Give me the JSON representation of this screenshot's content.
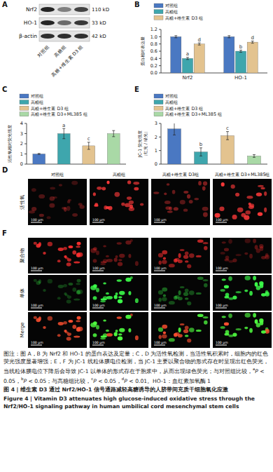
{
  "panel_labels": [
    "A",
    "B",
    "C",
    "D",
    "E",
    "F"
  ],
  "blot": {
    "rows": [
      {
        "name": "Nrf2",
        "size": "110 kD"
      },
      {
        "name": "HO-1",
        "size": "33 kD"
      },
      {
        "name": "β-actin",
        "size": "42 kD"
      }
    ],
    "lanes": [
      "对照组",
      "高糖组",
      "高糖+维生素 D3 组"
    ]
  },
  "chart_data": [
    {
      "type": "bar",
      "y_label": [
        "蛋白相对表达量"
      ],
      "categories": [
        "Nrf2",
        "HO-1"
      ],
      "series": [
        {
          "name": "对照组",
          "color": "#4a78c2",
          "values": [
            1.0,
            1.0
          ],
          "errors": [
            0.03,
            0.03
          ]
        },
        {
          "name": "高糖组",
          "color": "#3ea6ad",
          "values": [
            0.4,
            0.6
          ],
          "errors": [
            0.03,
            0.03
          ],
          "significance": [
            "a",
            "b"
          ]
        },
        {
          "name": "高糖+维生素 D3 组",
          "color": "#e3c38f",
          "values": [
            0.8,
            0.85
          ],
          "errors": [
            0.03,
            0.03
          ],
          "significance": [
            "d",
            "d"
          ]
        }
      ],
      "ylim": [
        0,
        1.2
      ],
      "yticks": [
        {
          "value": 0,
          "label": "0.0"
        },
        0.2,
        0.4,
        0.6,
        0.8,
        {
          "value": 1,
          "label": "1.0"
        },
        1.2
      ],
      "grid": false,
      "legend": "top-left"
    },
    {
      "type": "bar",
      "y_label": [
        "活性氧相对荧光强度"
      ],
      "categories": [
        "对照组",
        "高糖组",
        "高糖+维生素 D3 组",
        "高糖+维生素 D3+ML385 组"
      ],
      "values": [
        1.0,
        3.0,
        1.8,
        3.0
      ],
      "errors": [
        0.05,
        0.5,
        0.35,
        0.3
      ],
      "significance": [
        null,
        "a",
        "c",
        null
      ],
      "colors": [
        "#4a78c2",
        "#3ea6ad",
        "#e3c38f",
        "#a9d9a6"
      ],
      "ylim": [
        0,
        4
      ],
      "yticks": [
        0,
        1,
        2,
        3,
        4
      ],
      "grid": false,
      "legend": "top-left",
      "tick_labels": "y"
    },
    {
      "type": "bar",
      "y_label": [
        "JC-1 荧光强度",
        "（红光 / 绿光）"
      ],
      "categories": [
        "对照组",
        "高糖组",
        "高糖+维生素 D3 组",
        "高糖+维生素 D3+ML385 组"
      ],
      "values": [
        2.6,
        0.9,
        2.1,
        0.6
      ],
      "errors": [
        0.45,
        0.3,
        0.3,
        0.1
      ],
      "significance": [
        null,
        "b",
        "c",
        null
      ],
      "colors": [
        "#4a78c2",
        "#3ea6ad",
        "#e3c38f",
        "#a9d9a6"
      ],
      "ylim": [
        0,
        3
      ],
      "yticks": [
        0,
        1,
        2,
        3
      ],
      "grid": false,
      "legend": "top-left",
      "tick_labels": "y"
    }
  ],
  "fluorescence": {
    "columns": [
      "对照组",
      "高糖组",
      "高糖+维生素 D3组",
      "高糖+维生素 D3+ML385组"
    ],
    "ros_row": "活性氧",
    "jc1_rows": [
      "聚合物",
      "单体",
      "Merge"
    ],
    "scale_bar": "100 μm"
  },
  "caption": {
    "note_runs": [
      "图注：图 A，B 为 Nrf2 和 HO-1 的蛋白表达及定量；C，D 为活性氧检测，当活性氧积累时，细胞内的红色荧光强度显著增强；E，F 为 JC-1 线粒体膜电位检测，当 JC-1 主要以聚合物的形式存在时呈现出红色荧光，当线粒体膜电位下降后会导致 JC-1 以单体的形式存在于胞浆中，从而出现绿色荧光；与对照组比较，",
      {
        "sup": "a"
      },
      "P < 0.05，",
      {
        "sup": "b"
      },
      "P < 0.05；与高糖组比较，",
      {
        "sup": "c"
      },
      "P < 0.05，",
      {
        "sup": "d"
      },
      "P < 0.01。HO-1：血红素加氧酶 1"
    ],
    "title_cn": "图 4 | 维生素 D3 通过 Nrf2/HO-1 信号通路减轻高糖诱导的人脐带间充质干细胞氧化应激",
    "title_en": "Figure 4 | Vitamin D3 attenuates high glucose-induced oxidative stress through the Nrf2/HO-1 signaling pathway in human umbilical cord mesenchymal stem cells"
  }
}
